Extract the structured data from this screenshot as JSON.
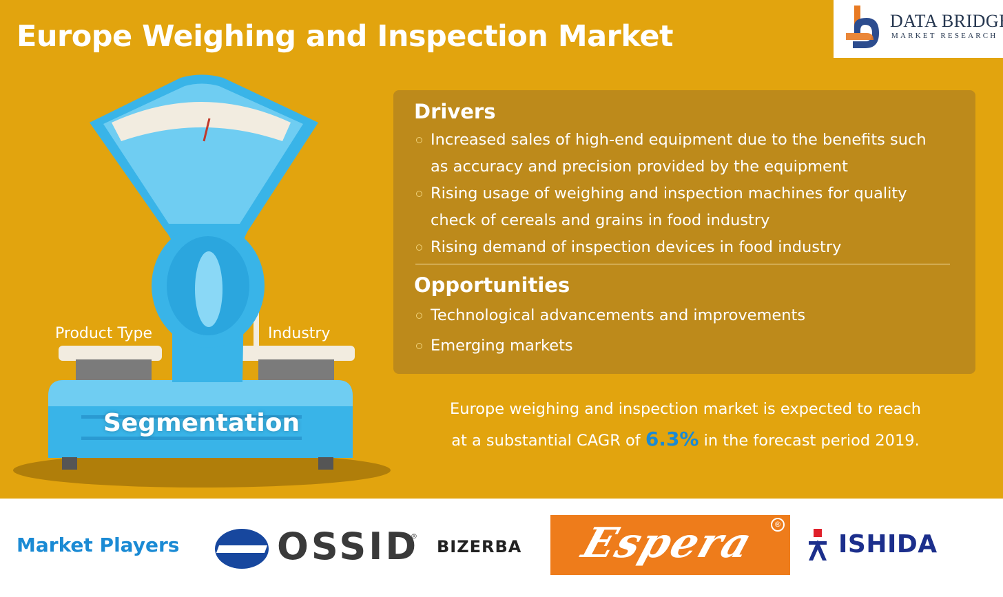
{
  "title": "Europe Weighing and Inspection Market",
  "logo": {
    "name": "DATA BRIDGE",
    "tagline": "MARKET RESEARCH"
  },
  "segmentation": {
    "label": "Segmentation",
    "left_pan": "Product Type",
    "right_pan": "Industry"
  },
  "drivers": {
    "heading": "Drivers",
    "items": [
      [
        "Increased sales of high-end equipment due to the benefits such",
        "as accuracy and precision provided by the equipment"
      ],
      [
        "Rising usage of weighing and inspection machines for quality",
        "check of cereals and grains in food industry"
      ],
      [
        "Rising demand of inspection devices in food industry"
      ]
    ]
  },
  "opportunities": {
    "heading": "Opportunities",
    "items": [
      "Technological advancements and improvements",
      "Emerging markets"
    ]
  },
  "cagr": {
    "line1": "Europe weighing and inspection market is expected to reach",
    "line2_prefix": "at a substantial  CAGR of ",
    "value": "6.3%",
    "line2_suffix": " in the forecast period 2019."
  },
  "market_players": {
    "label": "Market Players",
    "players": [
      "OSSID",
      "BIZERBA",
      "Espera",
      "ISHIDA"
    ],
    "registered_mark": "®"
  },
  "colors": {
    "background": "#e2a40e",
    "panel": "#bd8a1b",
    "accent_blue": "#1a8ad4",
    "scale_blue": "#39b4e8"
  }
}
